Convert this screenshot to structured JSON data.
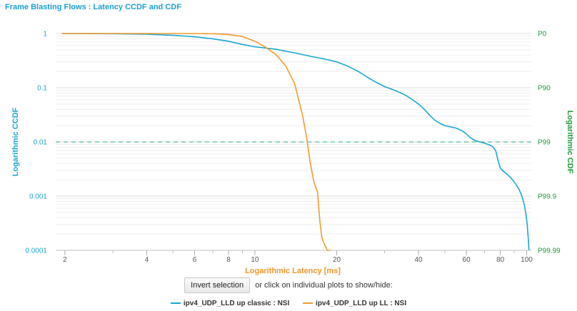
{
  "title": "Frame Blasting Flows : Latency CCDF and CDF",
  "controls": {
    "invert_label": "Invert selection",
    "hint": "or click on individual plots to show/hide:"
  },
  "chart_data": {
    "type": "line",
    "xlabel": "Logarithmic Latency [ms]",
    "ylabel_left": "Logarithmic CCDF",
    "ylabel_right": "Logarithmic CDF",
    "x_scale": "log",
    "y_scale": "log",
    "xlim": [
      1.85,
      104
    ],
    "ylim": [
      0.0001,
      1
    ],
    "x_ticks": [
      2,
      4,
      6,
      8,
      10,
      20,
      40,
      60,
      80,
      100
    ],
    "y_ticks_left": [
      {
        "value": 1,
        "label": "1"
      },
      {
        "value": 0.1,
        "label": "0.1"
      },
      {
        "value": 0.01,
        "label": "0.01"
      },
      {
        "value": 0.001,
        "label": "0.001"
      },
      {
        "value": 0.0001,
        "label": "0.0001"
      }
    ],
    "y_ticks_right": [
      {
        "value": 1,
        "label": "P0"
      },
      {
        "value": 0.1,
        "label": "P90"
      },
      {
        "value": 0.01,
        "label": "P99"
      },
      {
        "value": 0.001,
        "label": "P99.9"
      },
      {
        "value": 0.0001,
        "label": "P99.99"
      }
    ],
    "reference_line": {
      "value": 0.01,
      "style": "dashed",
      "color": "#2aa58f"
    },
    "grid": true,
    "legend_position": "bottom",
    "series": [
      {
        "name": "ipv4_UDP_LLD up classic : NSI",
        "color": "#1aa7d6",
        "points": [
          [
            1.95,
            1.0
          ],
          [
            3.0,
            0.99
          ],
          [
            4.0,
            0.97
          ],
          [
            5.0,
            0.93
          ],
          [
            6.0,
            0.87
          ],
          [
            7.0,
            0.8
          ],
          [
            8.0,
            0.72
          ],
          [
            9.0,
            0.63
          ],
          [
            10.0,
            0.57
          ],
          [
            12.0,
            0.51
          ],
          [
            14.0,
            0.44
          ],
          [
            16.0,
            0.38
          ],
          [
            18.0,
            0.34
          ],
          [
            20.0,
            0.3
          ],
          [
            22.0,
            0.25
          ],
          [
            24.0,
            0.2
          ],
          [
            26.0,
            0.155
          ],
          [
            28.0,
            0.125
          ],
          [
            30.0,
            0.105
          ],
          [
            33.0,
            0.088
          ],
          [
            36.0,
            0.072
          ],
          [
            38.0,
            0.06
          ],
          [
            40.0,
            0.05
          ],
          [
            42.0,
            0.04
          ],
          [
            44.0,
            0.031
          ],
          [
            46.0,
            0.025
          ],
          [
            48.0,
            0.022
          ],
          [
            50.0,
            0.02
          ],
          [
            55.0,
            0.018
          ],
          [
            58.0,
            0.016
          ],
          [
            60.0,
            0.014
          ],
          [
            62.0,
            0.012
          ],
          [
            65.0,
            0.0105
          ],
          [
            70.0,
            0.0095
          ],
          [
            73.0,
            0.0088
          ],
          [
            75.0,
            0.0082
          ],
          [
            77.0,
            0.0068
          ],
          [
            78.5,
            0.0045
          ],
          [
            80.0,
            0.0033
          ],
          [
            82.0,
            0.0029
          ],
          [
            85.0,
            0.0025
          ],
          [
            88.0,
            0.0021
          ],
          [
            91.0,
            0.0017
          ],
          [
            94.0,
            0.0013
          ],
          [
            96.0,
            0.001
          ],
          [
            98.0,
            0.0007
          ],
          [
            99.5,
            0.00045
          ],
          [
            100.5,
            0.0003
          ],
          [
            101.5,
            0.00015
          ],
          [
            102.0,
            0.0001
          ]
        ]
      },
      {
        "name": "ipv4_UDP_LLD up LL : NSI",
        "color": "#f39a2a",
        "points": [
          [
            1.95,
            1.0
          ],
          [
            6.0,
            1.0
          ],
          [
            7.0,
            0.99
          ],
          [
            8.0,
            0.96
          ],
          [
            9.0,
            0.88
          ],
          [
            10.0,
            0.72
          ],
          [
            11.0,
            0.55
          ],
          [
            12.0,
            0.4
          ],
          [
            13.0,
            0.25
          ],
          [
            14.0,
            0.12
          ],
          [
            14.5,
            0.06
          ],
          [
            15.0,
            0.03
          ],
          [
            15.5,
            0.012
          ],
          [
            16.0,
            0.004
          ],
          [
            16.5,
            0.0018
          ],
          [
            17.0,
            0.0012
          ],
          [
            17.3,
            0.0004
          ],
          [
            17.6,
            0.00018
          ],
          [
            18.0,
            0.00013
          ],
          [
            18.5,
            0.0001
          ],
          [
            19.0,
            0.0001
          ]
        ]
      }
    ]
  }
}
